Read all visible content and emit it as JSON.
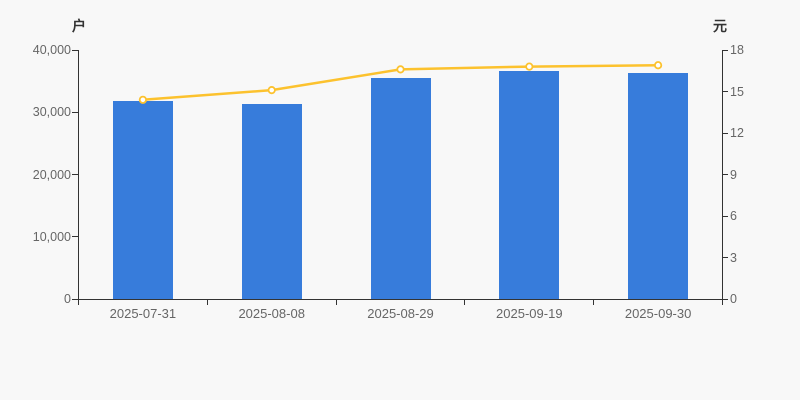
{
  "chart_data": {
    "type": "combo",
    "categories": [
      "2025-07-31",
      "2025-08-08",
      "2025-08-29",
      "2025-09-19",
      "2025-09-30"
    ],
    "series": [
      {
        "name": "户",
        "type": "bar",
        "axis": "left",
        "color": "#377cdb",
        "values": [
          31800,
          31300,
          35500,
          36700,
          36300
        ]
      },
      {
        "name": "元",
        "type": "line",
        "axis": "right",
        "color": "#fcc22e",
        "marker_fill": "#ffffff",
        "values": [
          14.4,
          15.1,
          16.6,
          16.8,
          16.9
        ]
      }
    ],
    "left_axis": {
      "name": "户",
      "min": 0,
      "max": 40000,
      "tick_values": [
        0,
        10000,
        20000,
        30000,
        40000
      ],
      "tick_labels": [
        "0",
        "10,000",
        "20,000",
        "30,000",
        "40,000"
      ]
    },
    "right_axis": {
      "name": "元",
      "min": 0,
      "max": 18,
      "tick_values": [
        0,
        3,
        6,
        9,
        12,
        15,
        18
      ],
      "tick_labels": [
        "0",
        "3",
        "6",
        "9",
        "12",
        "15",
        "18"
      ]
    },
    "grid": false,
    "legend": false,
    "colors": {
      "background": "#f8f8f8",
      "axis_line": "#333333",
      "tick_text": "#666666",
      "axis_name_text": "#333333"
    }
  }
}
